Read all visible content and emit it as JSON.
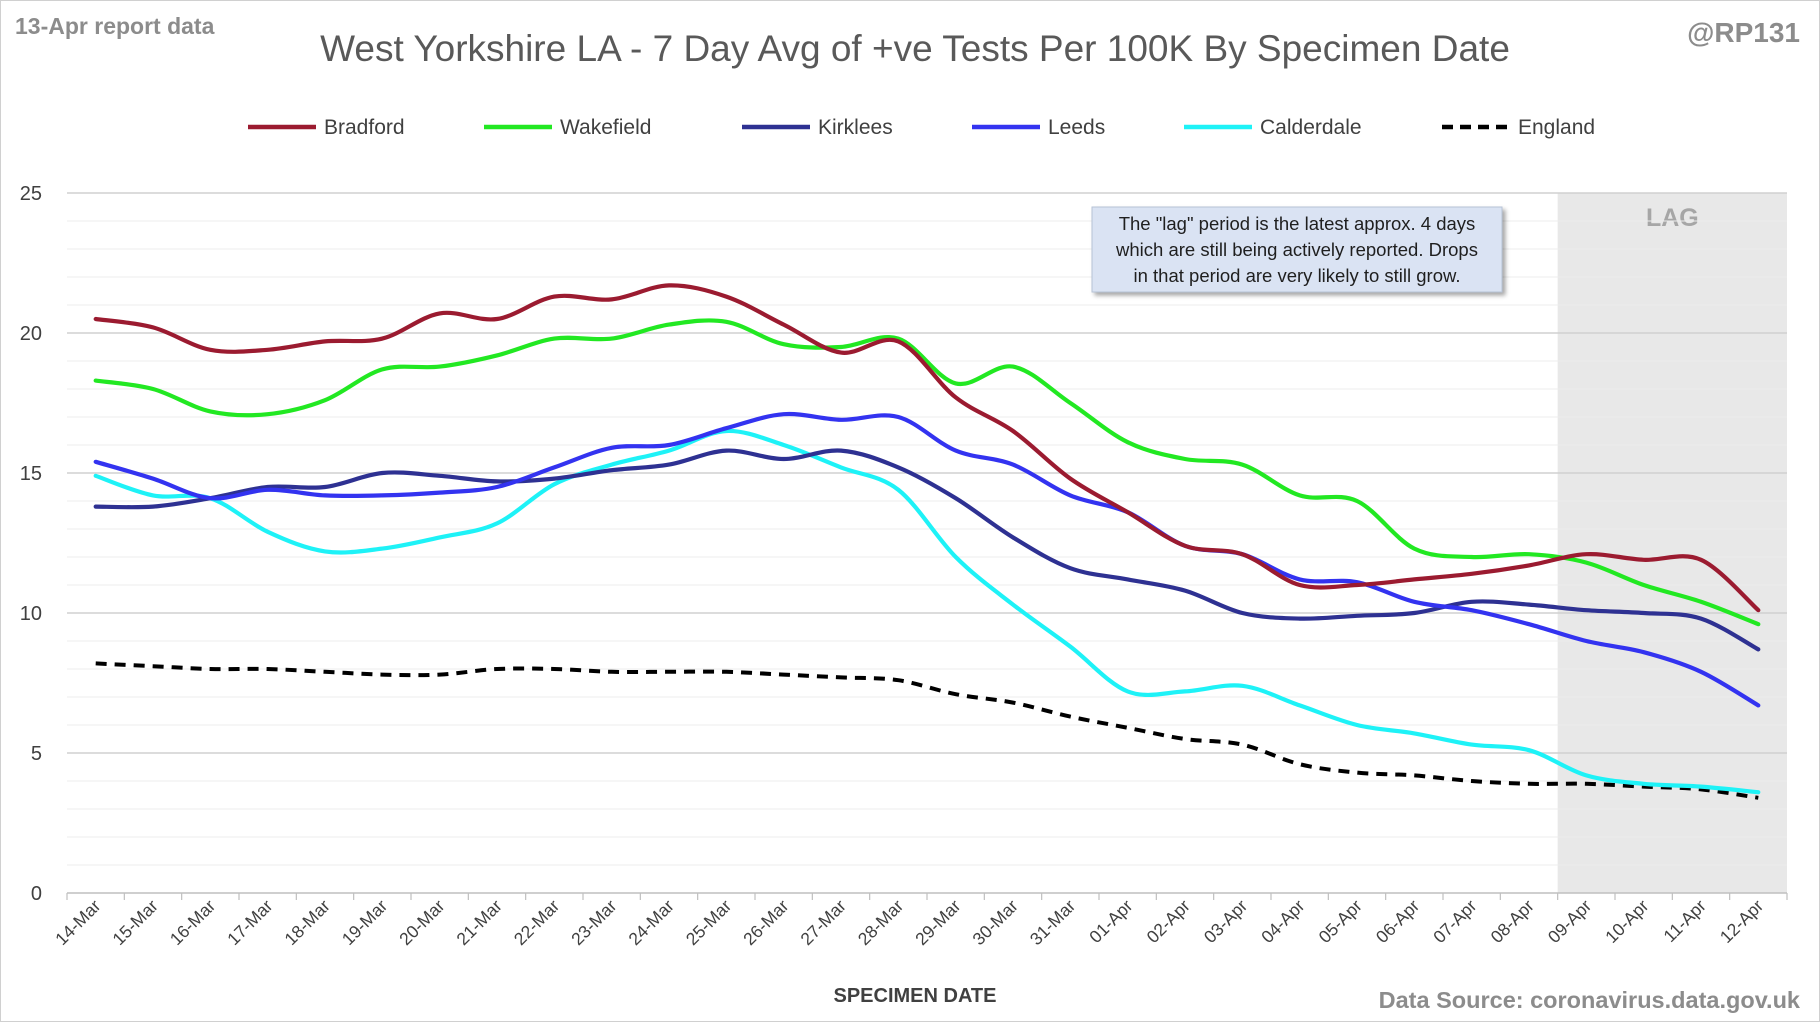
{
  "corner": {
    "report_label": "13-Apr report data",
    "handle": "@RP131",
    "source": "Data Source: coronavirus.data.gov.uk"
  },
  "annotation": {
    "lag_label": "LAG",
    "note_lines": [
      "The \"lag\" period is the latest approx. 4 days",
      "which are still being actively reported.  Drops",
      "in that period are very likely to still grow."
    ]
  },
  "colors": {
    "Bradford": "#9b1b30",
    "Wakefield": "#22e822",
    "Kirklees": "#2e3192",
    "Leeds": "#3333f0",
    "Calderdale": "#1ef2f7",
    "England": "#000000",
    "lag_band": "#e8e8e8",
    "gridline": "#d9d9d9",
    "note_bg": "#dae3f3"
  },
  "chart_data": {
    "type": "line",
    "title": "West Yorkshire LA - 7 Day Avg of +ve Tests Per 100K By Specimen Date",
    "xlabel": "SPECIMEN DATE",
    "ylabel": "",
    "ylim": [
      0,
      25
    ],
    "yticks": [
      0,
      5,
      10,
      15,
      20,
      25
    ],
    "grid": true,
    "legend_position": "top",
    "lag_period": [
      "09-Apr",
      "12-Apr"
    ],
    "categories": [
      "14-Mar",
      "15-Mar",
      "16-Mar",
      "17-Mar",
      "18-Mar",
      "19-Mar",
      "20-Mar",
      "21-Mar",
      "22-Mar",
      "23-Mar",
      "24-Mar",
      "25-Mar",
      "26-Mar",
      "27-Mar",
      "28-Mar",
      "29-Mar",
      "30-Mar",
      "31-Mar",
      "01-Apr",
      "02-Apr",
      "03-Apr",
      "04-Apr",
      "05-Apr",
      "06-Apr",
      "07-Apr",
      "08-Apr",
      "09-Apr",
      "10-Apr",
      "11-Apr",
      "12-Apr"
    ],
    "series": [
      {
        "name": "Bradford",
        "style": "solid",
        "values": [
          20.5,
          20.2,
          19.4,
          19.4,
          19.7,
          19.8,
          20.7,
          20.5,
          21.3,
          21.2,
          21.7,
          21.3,
          20.3,
          19.3,
          19.7,
          17.7,
          16.5,
          14.8,
          13.6,
          12.4,
          12.1,
          11.0,
          11.0,
          11.2,
          11.4,
          11.7,
          12.1,
          11.9,
          11.9,
          10.1
        ]
      },
      {
        "name": "Wakefield",
        "style": "solid",
        "values": [
          18.3,
          18.0,
          17.2,
          17.1,
          17.6,
          18.7,
          18.8,
          19.2,
          19.8,
          19.8,
          20.3,
          20.4,
          19.6,
          19.5,
          19.8,
          18.2,
          18.8,
          17.5,
          16.1,
          15.5,
          15.3,
          14.2,
          14.0,
          12.3,
          12.0,
          12.1,
          11.8,
          11.0,
          10.4,
          9.6
        ]
      },
      {
        "name": "Kirklees",
        "style": "solid",
        "values": [
          13.8,
          13.8,
          14.1,
          14.5,
          14.5,
          15.0,
          14.9,
          14.7,
          14.8,
          15.1,
          15.3,
          15.8,
          15.5,
          15.8,
          15.2,
          14.1,
          12.7,
          11.6,
          11.2,
          10.8,
          10.0,
          9.8,
          9.9,
          10.0,
          10.4,
          10.3,
          10.1,
          10.0,
          9.8,
          8.7
        ]
      },
      {
        "name": "Leeds",
        "style": "solid",
        "values": [
          15.4,
          14.8,
          14.1,
          14.4,
          14.2,
          14.2,
          14.3,
          14.5,
          15.2,
          15.9,
          16.0,
          16.6,
          17.1,
          16.9,
          17.0,
          15.8,
          15.3,
          14.2,
          13.6,
          12.4,
          12.1,
          11.2,
          11.1,
          10.4,
          10.1,
          9.6,
          9.0,
          8.6,
          7.9,
          6.7
        ]
      },
      {
        "name": "Calderdale",
        "style": "solid",
        "values": [
          14.9,
          14.2,
          14.1,
          12.9,
          12.2,
          12.3,
          12.7,
          13.2,
          14.6,
          15.3,
          15.8,
          16.5,
          16.0,
          15.2,
          14.4,
          12.0,
          10.3,
          8.8,
          7.2,
          7.2,
          7.4,
          6.7,
          6.0,
          5.7,
          5.3,
          5.1,
          4.2,
          3.9,
          3.8,
          3.6
        ]
      },
      {
        "name": "England",
        "style": "dashed",
        "values": [
          8.2,
          8.1,
          8.0,
          8.0,
          7.9,
          7.8,
          7.8,
          8.0,
          8.0,
          7.9,
          7.9,
          7.9,
          7.8,
          7.7,
          7.6,
          7.1,
          6.8,
          6.3,
          5.9,
          5.5,
          5.3,
          4.6,
          4.3,
          4.2,
          4.0,
          3.9,
          3.9,
          3.8,
          3.7,
          3.4
        ]
      }
    ]
  }
}
